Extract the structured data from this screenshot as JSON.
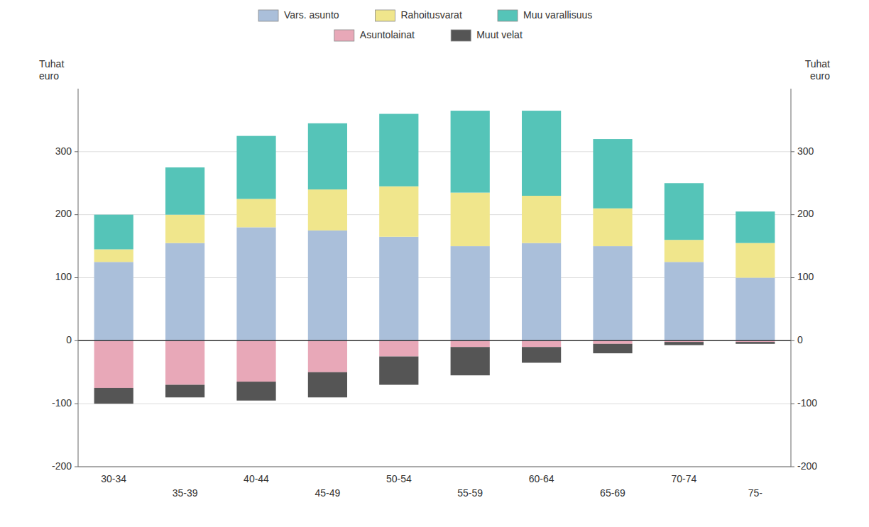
{
  "chart_data": {
    "type": "bar",
    "stacked": true,
    "categories": [
      "30-34",
      "35-39",
      "40-44",
      "45-49",
      "50-54",
      "55-59",
      "60-64",
      "65-69",
      "70-74",
      "75-"
    ],
    "series": [
      {
        "name": "Vars. asunto",
        "color": "#aabfda",
        "values": [
          125,
          155,
          180,
          175,
          165,
          150,
          155,
          150,
          125,
          100
        ]
      },
      {
        "name": "Rahoitusvarat",
        "color": "#f0e68c",
        "values": [
          20,
          45,
          45,
          65,
          80,
          85,
          75,
          60,
          35,
          55
        ]
      },
      {
        "name": "Muu varallisuus",
        "color": "#55c4b8",
        "values": [
          55,
          75,
          100,
          105,
          115,
          130,
          135,
          110,
          90,
          50
        ]
      },
      {
        "name": "Asuntolainat",
        "color": "#e8a8b8",
        "values": [
          -75,
          -70,
          -65,
          -50,
          -25,
          -10,
          -10,
          -5,
          -2,
          -2
        ]
      },
      {
        "name": "Muut velat",
        "color": "#555555",
        "values": [
          -25,
          -20,
          -30,
          -40,
          -45,
          -45,
          -25,
          -15,
          -5,
          -3
        ]
      }
    ],
    "ylabel": "Tuhat\neuro",
    "y2label": "Tuhat\neuro",
    "ylim": [
      -200,
      400
    ],
    "yticks": [
      -200,
      -100,
      0,
      100,
      200,
      300
    ],
    "y2lim": [
      -200,
      400
    ],
    "y2ticks": [
      -200,
      -100,
      0,
      100,
      200,
      300
    ],
    "grid": true,
    "legend": "top"
  }
}
